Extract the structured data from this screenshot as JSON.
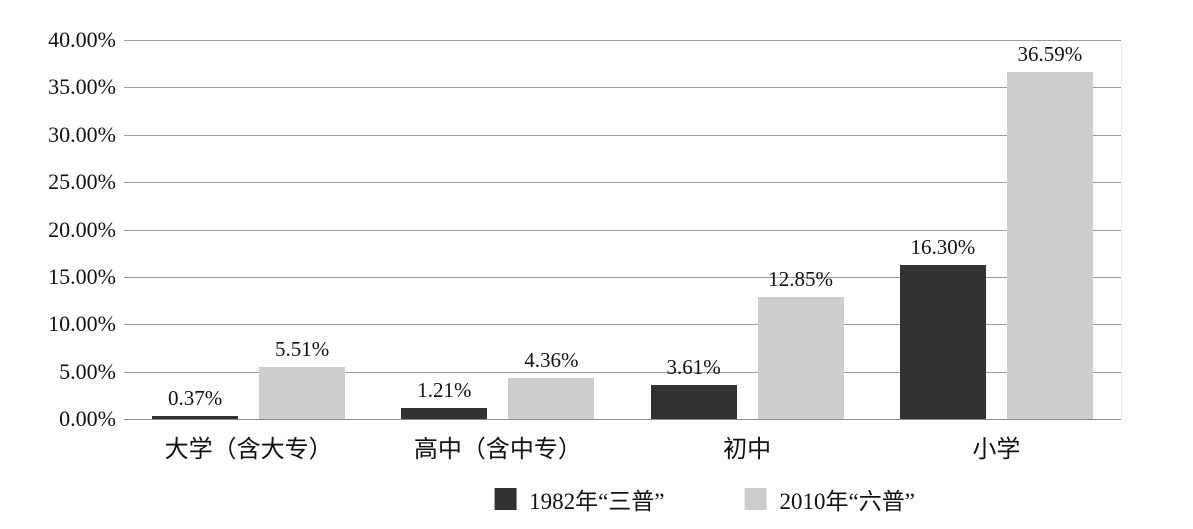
{
  "chart_data": {
    "type": "bar",
    "title": "",
    "categories": [
      "大学（含大专）",
      "高中（含中专）",
      "初中",
      "小学"
    ],
    "series": [
      {
        "name": "1982年“三普”",
        "color": "#323232",
        "values": [
          0.37,
          1.21,
          3.61,
          16.3
        ],
        "labels": [
          "0.37%",
          "1.21%",
          "3.61%",
          "16.30%"
        ]
      },
      {
        "name": "2010年“六普”",
        "color": "#cdcdcd",
        "values": [
          5.51,
          4.36,
          12.85,
          36.59
        ],
        "labels": [
          "5.51%",
          "4.36%",
          "12.85%",
          "36.59%"
        ]
      }
    ],
    "y_axis": {
      "min": 0,
      "max": 40,
      "ticks": [
        {
          "label": "40.00%",
          "value": 40
        },
        {
          "label": "35.00%",
          "value": 35
        },
        {
          "label": "30.00%",
          "value": 30
        },
        {
          "label": "25.00%",
          "value": 25
        },
        {
          "label": "20.00%",
          "value": 20
        },
        {
          "label": "15.00%",
          "value": 15
        },
        {
          "label": "10.00%",
          "value": 10
        },
        {
          "label": "5.00%",
          "value": 5
        },
        {
          "label": "0.00%",
          "value": 0
        }
      ]
    },
    "grid": true,
    "legend_position": "bottom"
  },
  "colors": {
    "grid_line": "#9b9b9b",
    "baseline": "#8c8c8c",
    "text": "#111111",
    "background": "#ffffff",
    "series_dark": "#323232",
    "series_light": "#cdcdcd"
  }
}
